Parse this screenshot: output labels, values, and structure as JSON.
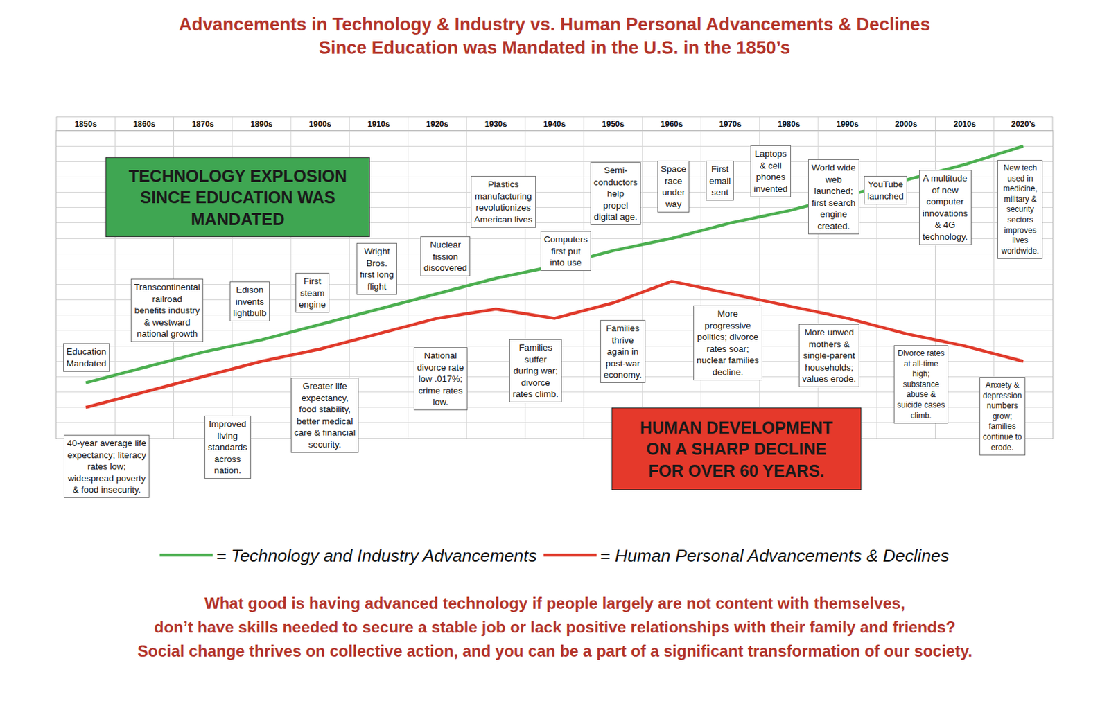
{
  "chart_data": {
    "type": "line",
    "title": "Advancements in Technology & Industry vs. Human Personal Advancements & Declines",
    "subtitle": "Since Education was Mandated in the U.S. in the 1850’s",
    "categories": [
      "1850s",
      "1860s",
      "1870s",
      "1890s",
      "1900s",
      "1910s",
      "1920s",
      "1930s",
      "1940s",
      "1950s",
      "1960s",
      "1970s",
      "1980s",
      "1990s",
      "2000s",
      "2010s",
      "2020’s"
    ],
    "series": [
      {
        "name": "= Technology and Industry Advancements",
        "color": "#4caf50",
        "line_style": "solid",
        "values": [
          18,
          23,
          28,
          32,
          37,
          42,
          47,
          52,
          56,
          61,
          65,
          70,
          74,
          79,
          84,
          89,
          95
        ]
      },
      {
        "name": "= Human Personal Advancements & Declines",
        "color": "#e03a2b",
        "line_style": "solid",
        "values": [
          10,
          15,
          20,
          25,
          29,
          34,
          39,
          42,
          39,
          44,
          51,
          47,
          43,
          39,
          34,
          30,
          25
        ]
      }
    ],
    "ylim": [
      0,
      100
    ],
    "yticks": [
      0,
      5,
      10,
      15,
      20,
      25,
      30,
      35,
      40,
      45,
      50,
      55,
      60,
      65,
      70,
      75,
      80,
      85,
      90,
      95,
      100
    ],
    "grid": true,
    "tick_labels": "x",
    "legend": "bottom",
    "annotations": [
      "TECHNOLOGY EXPLOSION\nSINCE EDUCATION WAS\nMANDATED",
      "HUMAN DEVELOPMENT\nON A SHARP DECLINE\nFOR OVER 60 YEARS.",
      "Education\nMandated",
      "40-year average life\nexpectancy; literacy\nrates low;\nwidespread poverty\n& food insecurity.",
      "Transcontinental\nrailroad\nbenefits industry\n& westward\nnational growth",
      "Improved\nliving\nstandards\nacross\nnation.",
      "Edison\ninvents\nlightbulb",
      "First\nsteam\nengine",
      "Greater life\nexpectancy,\nfood stability,\nbetter medical\ncare & financial\nsecurity.",
      "Wright\nBros.\nfirst long\nflight",
      "Nuclear\nfission\ndiscovered",
      "National\ndivorce rate\nlow .017%;\ncrime rates\nlow.",
      "Plastics\nmanufacturing\nrevolutionizes\nAmerican lives",
      "Families\nsuffer\nduring war;\ndivorce\nrates climb.",
      "Computers\nfirst put\ninto use",
      "Semi-\nconductors\nhelp\npropel\ndigital age.",
      "Families\nthrive\nagain in\npost-war\neconomy.",
      "Space\nrace\nunder\nway",
      "First\nemail\nsent",
      "More\nprogressive\npolitics; divorce\nrates soar;\nnuclear families\ndecline.",
      "Laptops\n& cell\nphones\ninvented",
      "World wide\nweb\nlaunched;\nfirst search\nengine\ncreated.",
      "More unwed\nmothers &\nsingle-parent\nhouseholds;\nvalues erode.",
      "YouTube\nlaunched",
      "A multitude\nof new\ncomputer\ninnovations\n& 4G\ntechnology.",
      "Divorce rates\nat all-time\nhigh;\nsubstance\nabuse &\nsuicide cases\nclimb.",
      "New tech\nused in\nmedicine,\nmilitary &\nsecurity\nsectors\nimproves\nlives\nworldwide.",
      "Anxiety &\ndepression\nnumbers\ngrow;\nfamilies\ncontinue to\nerode."
    ],
    "caption": [
      "What good is having advanced technology if people largely are not content with themselves,",
      "don’t have skills needed to secure a stable job or lack positive relationships with their family and friends?",
      "Social change thrives on collective action, and you can be a part of a significant transformation of our society."
    ]
  }
}
